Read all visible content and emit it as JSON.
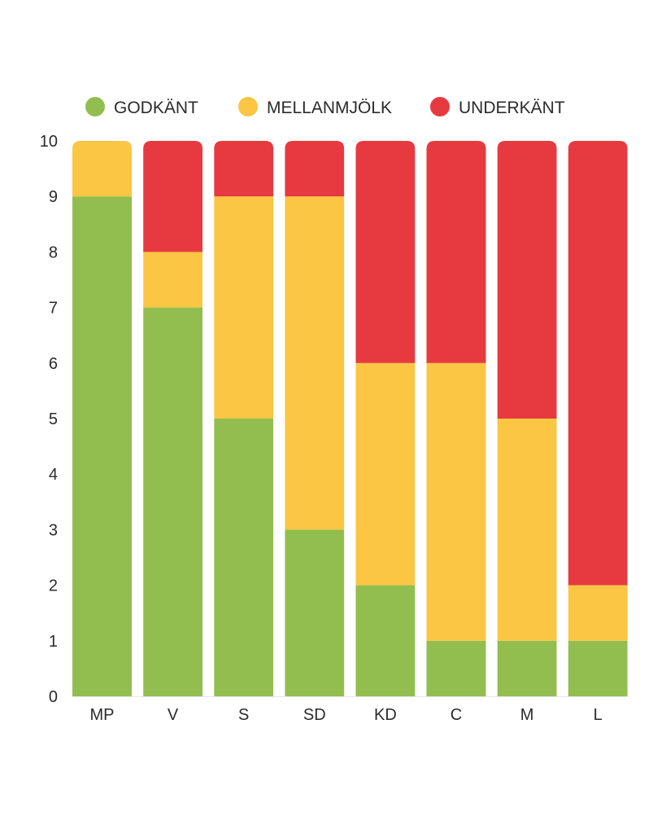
{
  "chart_data": {
    "type": "bar",
    "stacked": true,
    "categories": [
      "MP",
      "V",
      "S",
      "SD",
      "KD",
      "C",
      "M",
      "L"
    ],
    "series": [
      {
        "name": "GODKÄNT",
        "color": "#92be50",
        "values": [
          9,
          7,
          5,
          3,
          2,
          1,
          1,
          1
        ]
      },
      {
        "name": "MELLANMJÖLK",
        "color": "#fac643",
        "values": [
          1,
          1,
          4,
          6,
          4,
          5,
          4,
          1
        ]
      },
      {
        "name": "UNDERKÄNT",
        "color": "#e63a40",
        "values": [
          0,
          2,
          1,
          1,
          4,
          4,
          5,
          8
        ]
      }
    ],
    "title": "",
    "xlabel": "",
    "ylabel": "",
    "ylim": [
      0,
      10
    ],
    "yticks": [
      "0",
      "1",
      "2",
      "3",
      "4",
      "5",
      "6",
      "7",
      "8",
      "9",
      "10"
    ],
    "grid": false,
    "legend_position": "top"
  }
}
